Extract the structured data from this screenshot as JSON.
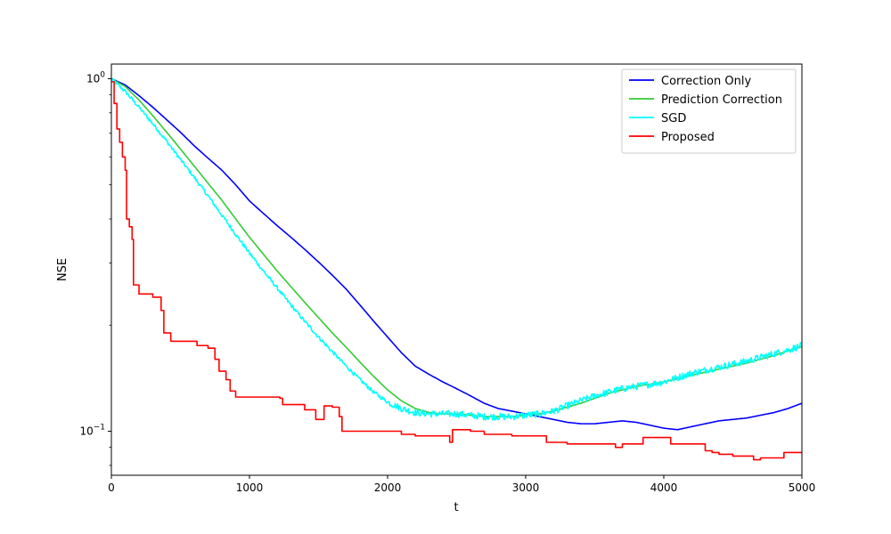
{
  "chart_data": {
    "type": "line",
    "xlabel": "t",
    "ylabel": "NSE",
    "xlim": [
      0,
      5000
    ],
    "ylim": [
      0.075,
      1.1
    ],
    "yscale": "log",
    "grid": false,
    "legend_position": "top-right",
    "x_ticks": [
      {
        "value": 0,
        "label": "0"
      },
      {
        "value": 1000,
        "label": "1000"
      },
      {
        "value": 2000,
        "label": "2000"
      },
      {
        "value": 3000,
        "label": "3000"
      },
      {
        "value": 4000,
        "label": "4000"
      },
      {
        "value": 5000,
        "label": "5000"
      }
    ],
    "y_major_ticks": [
      {
        "value": 0.1,
        "base": "10",
        "exp": "−1"
      },
      {
        "value": 1.0,
        "base": "10",
        "exp": "0"
      }
    ],
    "y_minor_ticks": [
      0.08,
      0.09,
      0.2,
      0.3,
      0.4,
      0.5,
      0.6,
      0.7,
      0.8,
      0.9
    ],
    "series": [
      {
        "name": "Correction Only",
        "color": "#0000ff",
        "style": "smooth",
        "points": [
          [
            0,
            1.0
          ],
          [
            100,
            0.96
          ],
          [
            200,
            0.895
          ],
          [
            300,
            0.83
          ],
          [
            400,
            0.765
          ],
          [
            500,
            0.705
          ],
          [
            600,
            0.645
          ],
          [
            700,
            0.595
          ],
          [
            800,
            0.55
          ],
          [
            900,
            0.5
          ],
          [
            1000,
            0.45
          ],
          [
            1100,
            0.415
          ],
          [
            1200,
            0.383
          ],
          [
            1300,
            0.355
          ],
          [
            1400,
            0.328
          ],
          [
            1500,
            0.302
          ],
          [
            1600,
            0.277
          ],
          [
            1700,
            0.253
          ],
          [
            1800,
            0.228
          ],
          [
            1900,
            0.205
          ],
          [
            2000,
            0.185
          ],
          [
            2100,
            0.167
          ],
          [
            2200,
            0.153
          ],
          [
            2300,
            0.145
          ],
          [
            2400,
            0.138
          ],
          [
            2500,
            0.132
          ],
          [
            2600,
            0.126
          ],
          [
            2700,
            0.12
          ],
          [
            2800,
            0.116
          ],
          [
            2900,
            0.114
          ],
          [
            3000,
            0.112
          ],
          [
            3100,
            0.11
          ],
          [
            3200,
            0.108
          ],
          [
            3300,
            0.106
          ],
          [
            3400,
            0.105
          ],
          [
            3500,
            0.105
          ],
          [
            3600,
            0.106
          ],
          [
            3700,
            0.107
          ],
          [
            3800,
            0.106
          ],
          [
            3900,
            0.104
          ],
          [
            4000,
            0.102
          ],
          [
            4100,
            0.101
          ],
          [
            4200,
            0.103
          ],
          [
            4300,
            0.105
          ],
          [
            4400,
            0.107
          ],
          [
            4500,
            0.108
          ],
          [
            4600,
            0.109
          ],
          [
            4700,
            0.111
          ],
          [
            4800,
            0.113
          ],
          [
            4900,
            0.116
          ],
          [
            5000,
            0.12
          ]
        ]
      },
      {
        "name": "Prediction Correction",
        "color": "#33cc33",
        "style": "smooth",
        "points": [
          [
            0,
            1.0
          ],
          [
            100,
            0.95
          ],
          [
            200,
            0.87
          ],
          [
            300,
            0.785
          ],
          [
            400,
            0.705
          ],
          [
            500,
            0.632
          ],
          [
            600,
            0.565
          ],
          [
            700,
            0.505
          ],
          [
            800,
            0.452
          ],
          [
            900,
            0.4
          ],
          [
            1000,
            0.355
          ],
          [
            1100,
            0.318
          ],
          [
            1200,
            0.285
          ],
          [
            1300,
            0.257
          ],
          [
            1400,
            0.232
          ],
          [
            1500,
            0.21
          ],
          [
            1600,
            0.19
          ],
          [
            1700,
            0.173
          ],
          [
            1800,
            0.157
          ],
          [
            1900,
            0.143
          ],
          [
            2000,
            0.131
          ],
          [
            2100,
            0.122
          ],
          [
            2200,
            0.116
          ],
          [
            2300,
            0.113
          ],
          [
            2400,
            0.112
          ],
          [
            2500,
            0.112
          ],
          [
            2600,
            0.111
          ],
          [
            2700,
            0.11
          ],
          [
            2800,
            0.11
          ],
          [
            2900,
            0.11
          ],
          [
            3000,
            0.111
          ],
          [
            3100,
            0.112
          ],
          [
            3200,
            0.114
          ],
          [
            3300,
            0.117
          ],
          [
            3400,
            0.12
          ],
          [
            3500,
            0.124
          ],
          [
            3600,
            0.128
          ],
          [
            3700,
            0.131
          ],
          [
            3800,
            0.134
          ],
          [
            3900,
            0.136
          ],
          [
            4000,
            0.138
          ],
          [
            4100,
            0.141
          ],
          [
            4200,
            0.144
          ],
          [
            4300,
            0.147
          ],
          [
            4400,
            0.15
          ],
          [
            4500,
            0.153
          ],
          [
            4600,
            0.156
          ],
          [
            4700,
            0.16
          ],
          [
            4800,
            0.164
          ],
          [
            4900,
            0.169
          ],
          [
            5000,
            0.174
          ]
        ]
      },
      {
        "name": "SGD",
        "color": "#00ffff",
        "style": "noisy",
        "points": [
          [
            0,
            1.0
          ],
          [
            100,
            0.92
          ],
          [
            200,
            0.83
          ],
          [
            300,
            0.745
          ],
          [
            400,
            0.665
          ],
          [
            500,
            0.59
          ],
          [
            600,
            0.525
          ],
          [
            700,
            0.465
          ],
          [
            800,
            0.41
          ],
          [
            900,
            0.362
          ],
          [
            1000,
            0.32
          ],
          [
            1100,
            0.285
          ],
          [
            1200,
            0.255
          ],
          [
            1300,
            0.228
          ],
          [
            1400,
            0.205
          ],
          [
            1500,
            0.185
          ],
          [
            1600,
            0.168
          ],
          [
            1700,
            0.153
          ],
          [
            1800,
            0.14
          ],
          [
            1900,
            0.129
          ],
          [
            2000,
            0.121
          ],
          [
            2100,
            0.116
          ],
          [
            2200,
            0.113
          ],
          [
            2300,
            0.112
          ],
          [
            2400,
            0.112
          ],
          [
            2500,
            0.112
          ],
          [
            2600,
            0.111
          ],
          [
            2700,
            0.11
          ],
          [
            2800,
            0.11
          ],
          [
            2900,
            0.11
          ],
          [
            3000,
            0.111
          ],
          [
            3100,
            0.112
          ],
          [
            3200,
            0.114
          ],
          [
            3300,
            0.118
          ],
          [
            3400,
            0.122
          ],
          [
            3500,
            0.126
          ],
          [
            3600,
            0.129
          ],
          [
            3700,
            0.132
          ],
          [
            3800,
            0.134
          ],
          [
            3900,
            0.136
          ],
          [
            4000,
            0.138
          ],
          [
            4100,
            0.142
          ],
          [
            4200,
            0.146
          ],
          [
            4300,
            0.149
          ],
          [
            4400,
            0.152
          ],
          [
            4500,
            0.155
          ],
          [
            4600,
            0.158
          ],
          [
            4700,
            0.162
          ],
          [
            4800,
            0.166
          ],
          [
            4900,
            0.17
          ],
          [
            5000,
            0.175
          ]
        ]
      },
      {
        "name": "Proposed",
        "color": "#ff0000",
        "style": "step",
        "points": [
          [
            0,
            0.98
          ],
          [
            20,
            0.85
          ],
          [
            40,
            0.72
          ],
          [
            60,
            0.66
          ],
          [
            80,
            0.6
          ],
          [
            100,
            0.55
          ],
          [
            110,
            0.4
          ],
          [
            130,
            0.38
          ],
          [
            150,
            0.35
          ],
          [
            160,
            0.26
          ],
          [
            200,
            0.245
          ],
          [
            300,
            0.24
          ],
          [
            360,
            0.22
          ],
          [
            380,
            0.19
          ],
          [
            430,
            0.18
          ],
          [
            520,
            0.18
          ],
          [
            620,
            0.175
          ],
          [
            700,
            0.172
          ],
          [
            750,
            0.16
          ],
          [
            780,
            0.148
          ],
          [
            830,
            0.14
          ],
          [
            860,
            0.13
          ],
          [
            900,
            0.125
          ],
          [
            1000,
            0.125
          ],
          [
            1100,
            0.125
          ],
          [
            1220,
            0.124
          ],
          [
            1240,
            0.119
          ],
          [
            1300,
            0.119
          ],
          [
            1400,
            0.115
          ],
          [
            1450,
            0.115
          ],
          [
            1480,
            0.108
          ],
          [
            1520,
            0.108
          ],
          [
            1540,
            0.118
          ],
          [
            1600,
            0.117
          ],
          [
            1650,
            0.11
          ],
          [
            1670,
            0.1
          ],
          [
            1800,
            0.1
          ],
          [
            2000,
            0.1
          ],
          [
            2100,
            0.098
          ],
          [
            2200,
            0.097
          ],
          [
            2300,
            0.097
          ],
          [
            2440,
            0.097
          ],
          [
            2450,
            0.093
          ],
          [
            2470,
            0.101
          ],
          [
            2550,
            0.101
          ],
          [
            2600,
            0.1
          ],
          [
            2700,
            0.098
          ],
          [
            2800,
            0.098
          ],
          [
            2900,
            0.097
          ],
          [
            3000,
            0.097
          ],
          [
            3100,
            0.097
          ],
          [
            3150,
            0.093
          ],
          [
            3300,
            0.092
          ],
          [
            3400,
            0.092
          ],
          [
            3500,
            0.092
          ],
          [
            3600,
            0.092
          ],
          [
            3650,
            0.09
          ],
          [
            3700,
            0.092
          ],
          [
            3800,
            0.092
          ],
          [
            3850,
            0.096
          ],
          [
            4000,
            0.096
          ],
          [
            4050,
            0.092
          ],
          [
            4200,
            0.092
          ],
          [
            4300,
            0.088
          ],
          [
            4350,
            0.087
          ],
          [
            4400,
            0.086
          ],
          [
            4500,
            0.085
          ],
          [
            4600,
            0.085
          ],
          [
            4650,
            0.083
          ],
          [
            4700,
            0.084
          ],
          [
            4850,
            0.084
          ],
          [
            4870,
            0.087
          ],
          [
            5000,
            0.087
          ]
        ]
      }
    ]
  }
}
